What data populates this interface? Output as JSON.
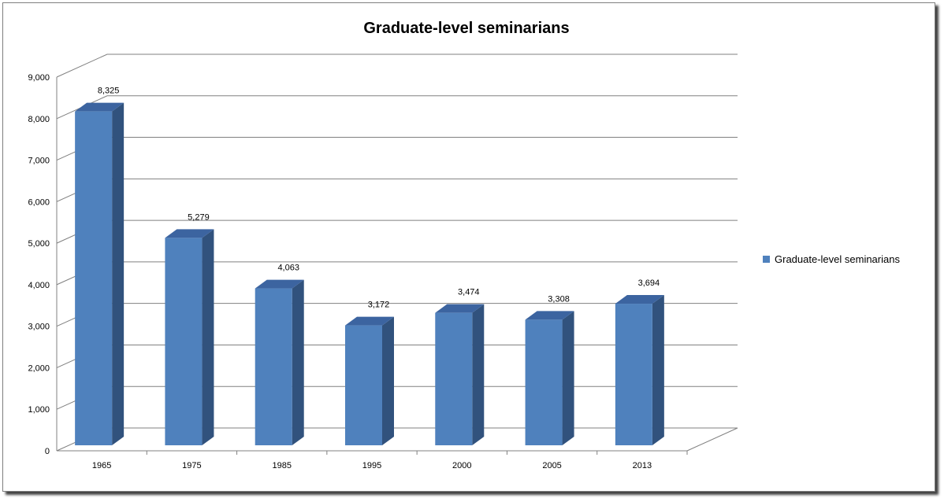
{
  "chart_data": {
    "type": "bar",
    "style": "3d-column",
    "title": "Graduate-level seminarians",
    "categories": [
      "1965",
      "1975",
      "1985",
      "1995",
      "2000",
      "2005",
      "2013"
    ],
    "series": [
      {
        "name": "Graduate-level seminarians",
        "values": [
          8325,
          5279,
          4063,
          3172,
          3474,
          3308,
          3694
        ]
      }
    ],
    "data_labels": [
      "8,325",
      "5,279",
      "4,063",
      "3,172",
      "3,474",
      "3,308",
      "3,694"
    ],
    "y_ticks": [
      "0",
      "1,000",
      "2,000",
      "3,000",
      "4,000",
      "5,000",
      "6,000",
      "7,000",
      "8,000",
      "9,000"
    ],
    "ylim": [
      0,
      9000
    ],
    "grid": true,
    "legend_position": "right",
    "colors": {
      "front": "#4f81bd",
      "side": "#31527d",
      "top": "#3c64a0",
      "grid": "#808080"
    }
  }
}
